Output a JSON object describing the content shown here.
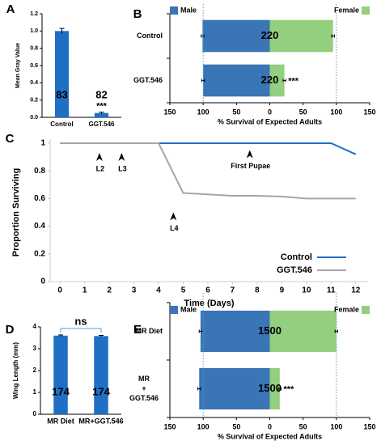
{
  "chart_data": [
    {
      "panel": "A",
      "type": "bar",
      "ylabel": "Mean Gray Value",
      "categories": [
        "Control",
        "GGT.546"
      ],
      "values": [
        1.0,
        0.05
      ],
      "errors": [
        0.03,
        0.01
      ],
      "color": "#1f6fc5",
      "ylim": [
        0,
        1.2
      ],
      "yticks": [
        {
          "value": 0,
          "label": "0.0"
        },
        {
          "value": 0.2,
          "label": "0.2"
        },
        {
          "value": 0.4,
          "label": "0.4"
        },
        {
          "value": 0.6,
          "label": "0.6"
        },
        {
          "value": 0.8,
          "label": "0.8"
        },
        {
          "value": 1,
          "label": "1.0"
        },
        {
          "value": 1.2,
          "label": "1.2"
        }
      ],
      "bar_labels": [
        "83",
        "82"
      ],
      "significance": "***"
    },
    {
      "panel": "B",
      "type": "barh",
      "xlabel": "% Survival of Expected Adults",
      "categories": [
        "Control",
        "GGT.546"
      ],
      "series": [
        {
          "name": "Male",
          "color": "#3a75b5",
          "values": [
            -101,
            -100
          ],
          "errors": [
            2,
            2
          ]
        },
        {
          "name": "Female",
          "color": "#93cf7e",
          "values": [
            95,
            22
          ],
          "errors": [
            2,
            2
          ]
        }
      ],
      "xlim": [
        -150,
        150
      ],
      "xticks": [
        {
          "value": -150,
          "label": "150"
        },
        {
          "value": -100,
          "label": "100"
        },
        {
          "value": -50,
          "label": "50"
        },
        0,
        50,
        100,
        150
      ],
      "reference_lines": [
        -100,
        100
      ],
      "bar_labels": [
        "220",
        "220"
      ],
      "significance": "***"
    },
    {
      "panel": "C",
      "type": "line",
      "xlabel": "Time (Days)",
      "ylabel": "Proportion Surviving",
      "x": [
        0,
        1,
        2,
        3,
        4,
        5,
        6,
        7,
        8,
        9,
        10,
        11,
        12
      ],
      "series": [
        {
          "name": "Control",
          "color": "#1f6fc5",
          "values": [
            1,
            1,
            1,
            1,
            1,
            1,
            1,
            1,
            1,
            1,
            1,
            1,
            0.92
          ]
        },
        {
          "name": "GGT.546",
          "color": "#a6a6a6",
          "values": [
            1,
            1,
            1,
            1,
            1,
            0.64,
            0.63,
            0.62,
            0.62,
            0.615,
            0.6,
            0.6,
            0.6
          ]
        }
      ],
      "xlim": [
        -0.4,
        12.5
      ],
      "xticks": [
        0,
        1,
        2,
        3,
        4,
        5,
        6,
        7,
        8,
        9,
        10,
        11,
        12
      ],
      "ylim": [
        0,
        1
      ],
      "yticks": [
        0,
        0.2,
        0.4,
        0.6,
        0.8,
        1
      ],
      "annotations": [
        {
          "text": "L2",
          "x": 1.6,
          "y": 0.93
        },
        {
          "text": "L3",
          "x": 2.5,
          "y": 0.93
        },
        {
          "text": "L4",
          "x": 4.6,
          "y": 0.5
        },
        {
          "text": "First Pupae",
          "x": 7.7,
          "y": 0.95
        }
      ],
      "legend": "lower right"
    },
    {
      "panel": "D",
      "type": "bar",
      "ylabel": "Wing Length (mm)",
      "categories": [
        "MR Diet",
        "MR+GGT.546"
      ],
      "values": [
        3.6,
        3.58
      ],
      "errors": [
        0.03,
        0.03
      ],
      "color": "#1f6fc5",
      "ylim": [
        0,
        4
      ],
      "yticks": [
        0,
        1,
        2,
        3,
        4
      ],
      "bar_labels": [
        "174",
        "174"
      ],
      "significance": "ns",
      "bracket": true
    },
    {
      "panel": "E",
      "type": "barh",
      "xlabel": "% Survival of Expected Adults",
      "categories": [
        "MR Diet",
        [
          "MR",
          "+",
          "GGT.546"
        ]
      ],
      "series": [
        {
          "name": "Male",
          "color": "#3a75b5",
          "values": [
            -104,
            -106
          ],
          "errors": [
            2,
            2
          ]
        },
        {
          "name": "Female",
          "color": "#93cf7e",
          "values": [
            100,
            15
          ],
          "errors": [
            2,
            2
          ]
        }
      ],
      "xlim": [
        -150,
        150
      ],
      "xticks": [
        {
          "value": -150,
          "label": "150"
        },
        {
          "value": -100,
          "label": "100"
        },
        {
          "value": -50,
          "label": "50"
        },
        0,
        50,
        100,
        150
      ],
      "reference_lines": [
        -100,
        100
      ],
      "bar_labels": [
        "1500",
        "1500"
      ],
      "significance": "***"
    }
  ]
}
